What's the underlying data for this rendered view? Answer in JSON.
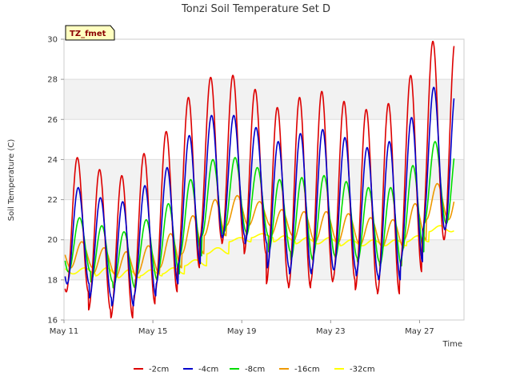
{
  "chart_data": {
    "type": "line",
    "title": "Tonzi Soil Temperature Set D",
    "xlabel": "Time",
    "ylabel": "Soil Temperature (C)",
    "tag": "TZ_fmet",
    "x_ticks": [
      "May 11",
      "May 15",
      "May 19",
      "May 23",
      "May 27"
    ],
    "x_tick_days": [
      0,
      4,
      8,
      12,
      16
    ],
    "xlim": [
      0,
      18
    ],
    "ylim": [
      16,
      30
    ],
    "y_ticks": [
      16,
      18,
      20,
      22,
      24,
      26,
      28,
      30
    ],
    "grid": "horizontal bands",
    "legend_position": "bottom",
    "series": [
      {
        "name": "-2cm",
        "color": "#dd0000",
        "daily_max": [
          24.1,
          23.5,
          23.2,
          24.3,
          25.4,
          27.1,
          28.1,
          28.2,
          27.5,
          26.6,
          27.1,
          27.4,
          26.9,
          26.5,
          26.8,
          28.2,
          29.9
        ],
        "daily_min": [
          17.4,
          16.5,
          16.1,
          16.8,
          17.4,
          18.6,
          20.0,
          19.8,
          19.3,
          17.8,
          17.6,
          17.9,
          18.0,
          17.5,
          17.3,
          18.4,
          20.0
        ]
      },
      {
        "name": "-4cm",
        "color": "#0000cc",
        "daily_max": [
          22.6,
          22.1,
          21.9,
          22.7,
          23.6,
          25.2,
          26.2,
          26.2,
          25.6,
          24.9,
          25.3,
          25.5,
          25.1,
          24.6,
          24.9,
          26.1,
          27.6
        ],
        "daily_min": [
          17.8,
          17.1,
          16.7,
          17.2,
          17.8,
          18.8,
          20.1,
          20.2,
          19.8,
          18.6,
          18.3,
          18.5,
          18.5,
          18.2,
          18.0,
          18.9,
          20.5
        ]
      },
      {
        "name": "-8cm",
        "color": "#00dd00",
        "daily_max": [
          21.1,
          20.7,
          20.4,
          21.0,
          21.8,
          23.0,
          24.0,
          24.1,
          23.6,
          23.0,
          23.1,
          23.2,
          22.9,
          22.6,
          22.6,
          23.7,
          24.9
        ],
        "daily_min": [
          18.4,
          17.9,
          17.6,
          18.0,
          18.3,
          19.2,
          20.2,
          20.4,
          20.2,
          19.4,
          19.0,
          19.2,
          19.1,
          18.9,
          18.7,
          19.4,
          20.8
        ]
      },
      {
        "name": "-16cm",
        "color": "#ee9900",
        "daily_max": [
          19.9,
          19.6,
          19.4,
          19.7,
          20.3,
          21.2,
          22.0,
          22.2,
          21.9,
          21.5,
          21.4,
          21.4,
          21.3,
          21.1,
          21.0,
          21.8,
          22.8
        ],
        "daily_min": [
          18.6,
          18.3,
          18.1,
          18.3,
          18.6,
          19.3,
          20.2,
          20.7,
          20.7,
          20.2,
          19.9,
          19.9,
          19.8,
          19.7,
          19.6,
          20.0,
          21.0
        ]
      },
      {
        "name": "-32cm",
        "color": "#ffff00",
        "daily_max": [
          18.6,
          18.6,
          18.5,
          18.5,
          18.6,
          19.0,
          19.6,
          20.1,
          20.3,
          20.2,
          20.1,
          20.1,
          20.0,
          20.0,
          20.0,
          20.2,
          20.7
        ],
        "daily_min": [
          18.3,
          18.2,
          18.1,
          18.2,
          18.3,
          18.7,
          19.3,
          19.9,
          20.1,
          19.9,
          19.8,
          19.8,
          19.7,
          19.7,
          19.7,
          19.9,
          20.4
        ]
      }
    ]
  }
}
